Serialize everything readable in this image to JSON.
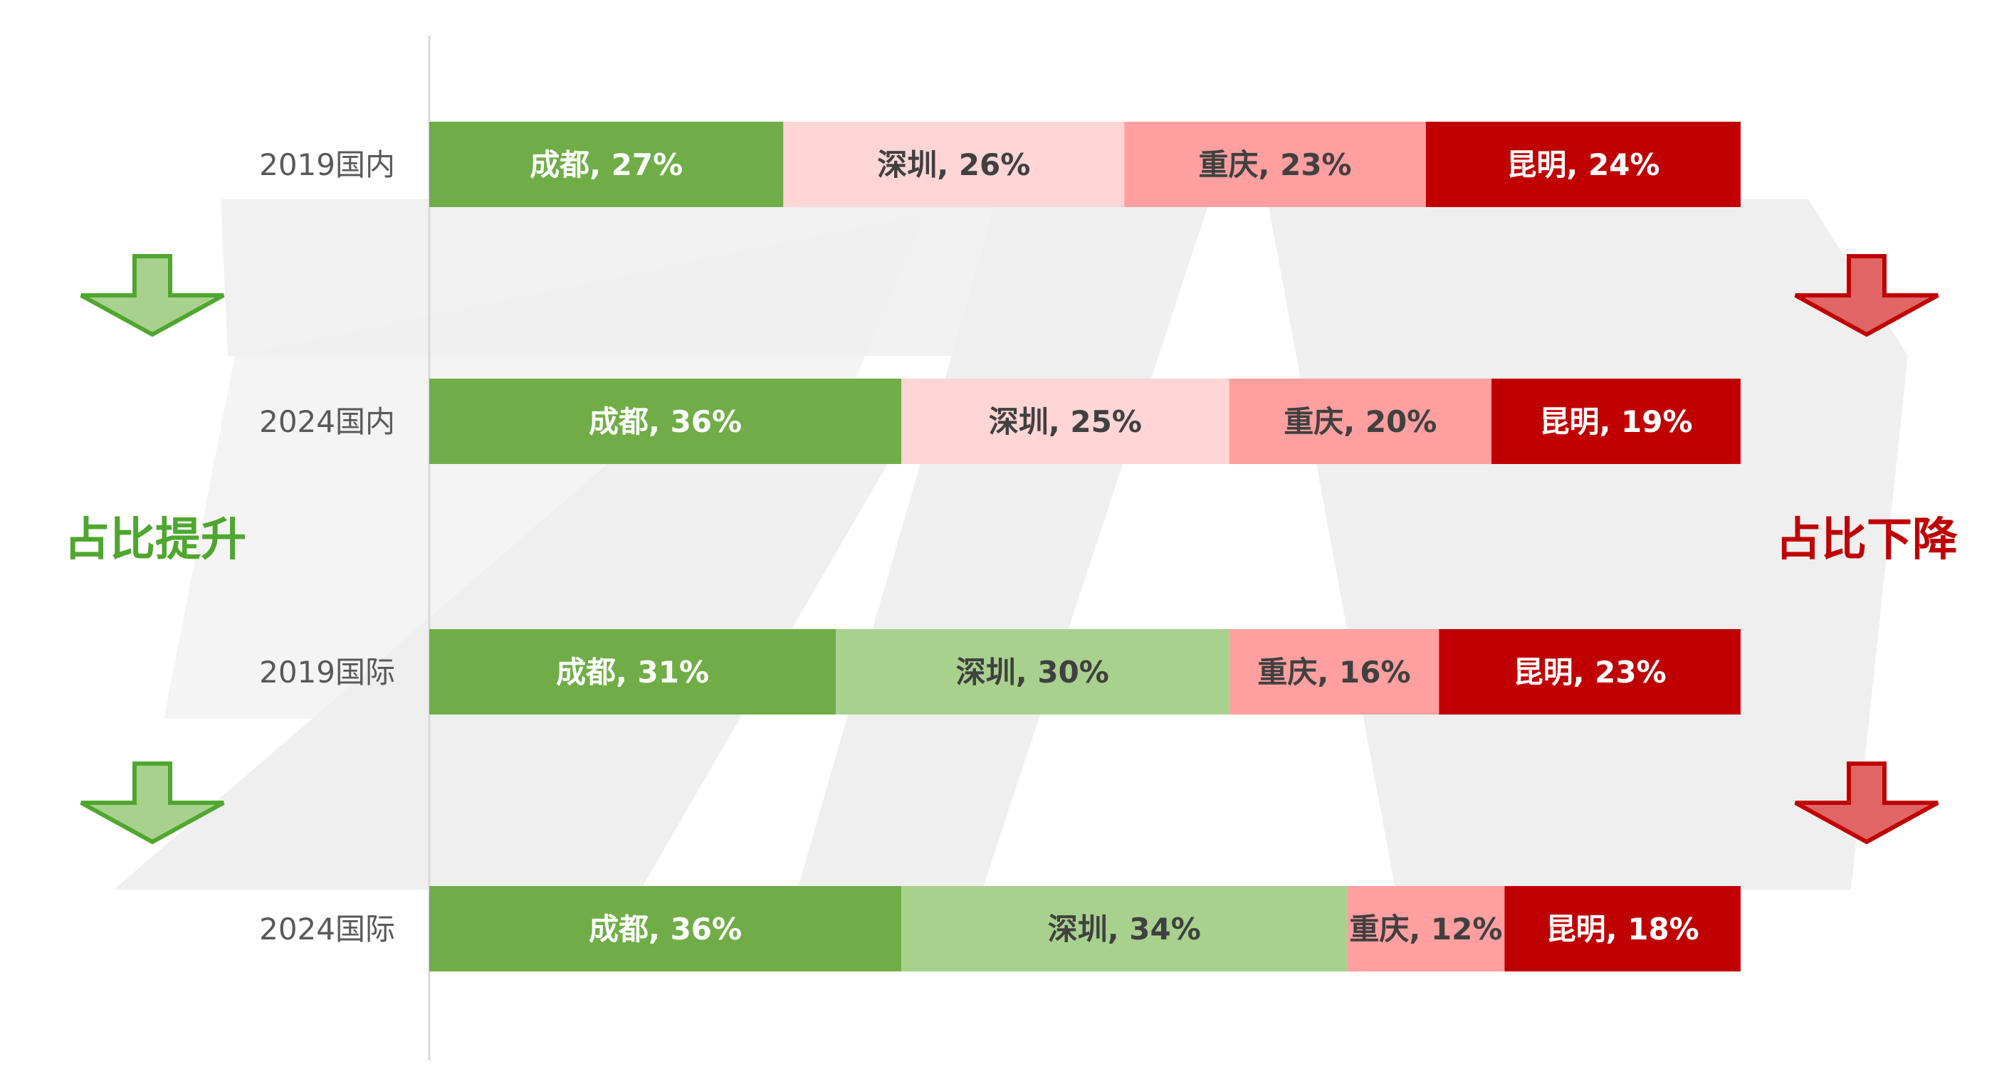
{
  "chart_data": {
    "type": "bar",
    "orientation": "horizontal",
    "stacked": true,
    "normalized": true,
    "categories": [
      "2019国内",
      "2024国内",
      "2019国际",
      "2024国际"
    ],
    "series": [
      {
        "labels": [
          "成都, 27%",
          "成都, 36%",
          "成都, 31%",
          "成都, 36%"
        ],
        "values": [
          27,
          36,
          31,
          36
        ],
        "colors": [
          "#70ad47",
          "#70ad47",
          "#70ad47",
          "#70ad47"
        ],
        "text_color": "#ffffff"
      },
      {
        "labels": [
          "深圳, 26%",
          "深圳, 25%",
          "深圳, 30%",
          "深圳, 34%"
        ],
        "values": [
          26,
          25,
          30,
          34
        ],
        "colors": [
          "#ffd5d5",
          "#ffd5d5",
          "#a9d18e",
          "#a9d18e"
        ],
        "text_color": "#404040"
      },
      {
        "labels": [
          "重庆, 23%",
          "重庆, 20%",
          "重庆, 16%",
          "重庆, 12%"
        ],
        "values": [
          23,
          20,
          16,
          12
        ],
        "colors": [
          "#ff9f9f",
          "#ff9f9f",
          "#ff9f9f",
          "#ff9f9f"
        ],
        "text_color": "#404040"
      },
      {
        "labels": [
          "昆明, 24%",
          "昆明, 19%",
          "昆明, 23%",
          "昆明, 18%"
        ],
        "values": [
          24,
          19,
          23,
          18
        ],
        "colors": [
          "#c00000",
          "#c00000",
          "#c00000",
          "#c00000"
        ],
        "text_color": "#ffffff"
      }
    ],
    "gridlines": false,
    "legend": "none"
  },
  "annotations": {
    "left_text": "占比提升",
    "right_text": "占比下降",
    "left_color": "#4ea72e",
    "right_color": "#c00000",
    "down_arrow_green_fill": "#a9d18e",
    "down_arrow_green_stroke": "#4ea72e",
    "down_arrow_red_fill": "#e06666",
    "down_arrow_red_stroke": "#c00000"
  }
}
